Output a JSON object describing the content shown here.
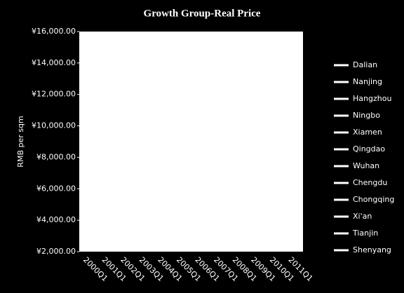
{
  "chart_data": {
    "type": "line",
    "title": "Growth  Group-Real Price",
    "y_label": "RMB per sqm",
    "categories": [
      "2000Q1",
      "2001Q1",
      "2002Q1",
      "2003Q1",
      "2004Q1",
      "2005Q1",
      "2006Q1",
      "2007Q1",
      "2008Q1",
      "2009Q1",
      "2010Q1",
      "2011Q1"
    ],
    "series": [
      {
        "name": "Dalian",
        "color": "#ffffff",
        "values": [
          null,
          null,
          null,
          null,
          null,
          null,
          null,
          null,
          null,
          null,
          null,
          null
        ]
      },
      {
        "name": "Nanjing",
        "color": "#ffffff",
        "values": [
          null,
          null,
          null,
          null,
          null,
          null,
          null,
          null,
          null,
          null,
          null,
          null
        ]
      },
      {
        "name": "Hangzhou",
        "color": "#ffffff",
        "values": [
          null,
          null,
          null,
          null,
          null,
          null,
          null,
          null,
          null,
          null,
          null,
          null
        ]
      },
      {
        "name": "Ningbo",
        "color": "#ffffff",
        "values": [
          null,
          null,
          null,
          null,
          null,
          null,
          null,
          null,
          null,
          null,
          null,
          null
        ]
      },
      {
        "name": "Xiamen",
        "color": "#ffffff",
        "values": [
          null,
          null,
          null,
          null,
          null,
          null,
          null,
          null,
          null,
          null,
          null,
          null
        ]
      },
      {
        "name": "Qingdao",
        "color": "#ffffff",
        "values": [
          null,
          null,
          null,
          null,
          null,
          null,
          null,
          null,
          null,
          null,
          null,
          null
        ]
      },
      {
        "name": "Wuhan",
        "color": "#ffffff",
        "values": [
          null,
          null,
          null,
          null,
          null,
          null,
          null,
          null,
          null,
          null,
          null,
          null
        ]
      },
      {
        "name": "Chengdu",
        "color": "#ffffff",
        "values": [
          null,
          null,
          null,
          null,
          null,
          null,
          null,
          null,
          null,
          null,
          null,
          null
        ]
      },
      {
        "name": "Chongqing",
        "color": "#ffffff",
        "values": [
          null,
          null,
          null,
          null,
          null,
          null,
          null,
          null,
          null,
          null,
          null,
          null
        ]
      },
      {
        "name": "Xi'an",
        "color": "#ffffff",
        "values": [
          null,
          null,
          null,
          null,
          null,
          null,
          null,
          null,
          null,
          null,
          null,
          null
        ]
      },
      {
        "name": "Tianjin",
        "color": "#ffffff",
        "values": [
          null,
          null,
          null,
          null,
          null,
          null,
          null,
          null,
          null,
          null,
          null,
          null
        ]
      },
      {
        "name": "Shenyang",
        "color": "#ffffff",
        "values": [
          null,
          null,
          null,
          null,
          null,
          null,
          null,
          null,
          null,
          null,
          null,
          null
        ]
      }
    ],
    "ylim": [
      2000,
      16000
    ],
    "yticks": [
      {
        "value": 2000,
        "label": "¥2,000.00"
      },
      {
        "value": 4000,
        "label": "¥4,000.00"
      },
      {
        "value": 6000,
        "label": "¥6,000.00"
      },
      {
        "value": 8000,
        "label": "¥8,000.00"
      },
      {
        "value": 10000,
        "label": "¥10,000.00"
      },
      {
        "value": 12000,
        "label": "¥12,000.00"
      },
      {
        "value": 14000,
        "label": "¥14,000.00"
      },
      {
        "value": 16000,
        "label": "¥16,000.00"
      }
    ],
    "legend": "right"
  }
}
